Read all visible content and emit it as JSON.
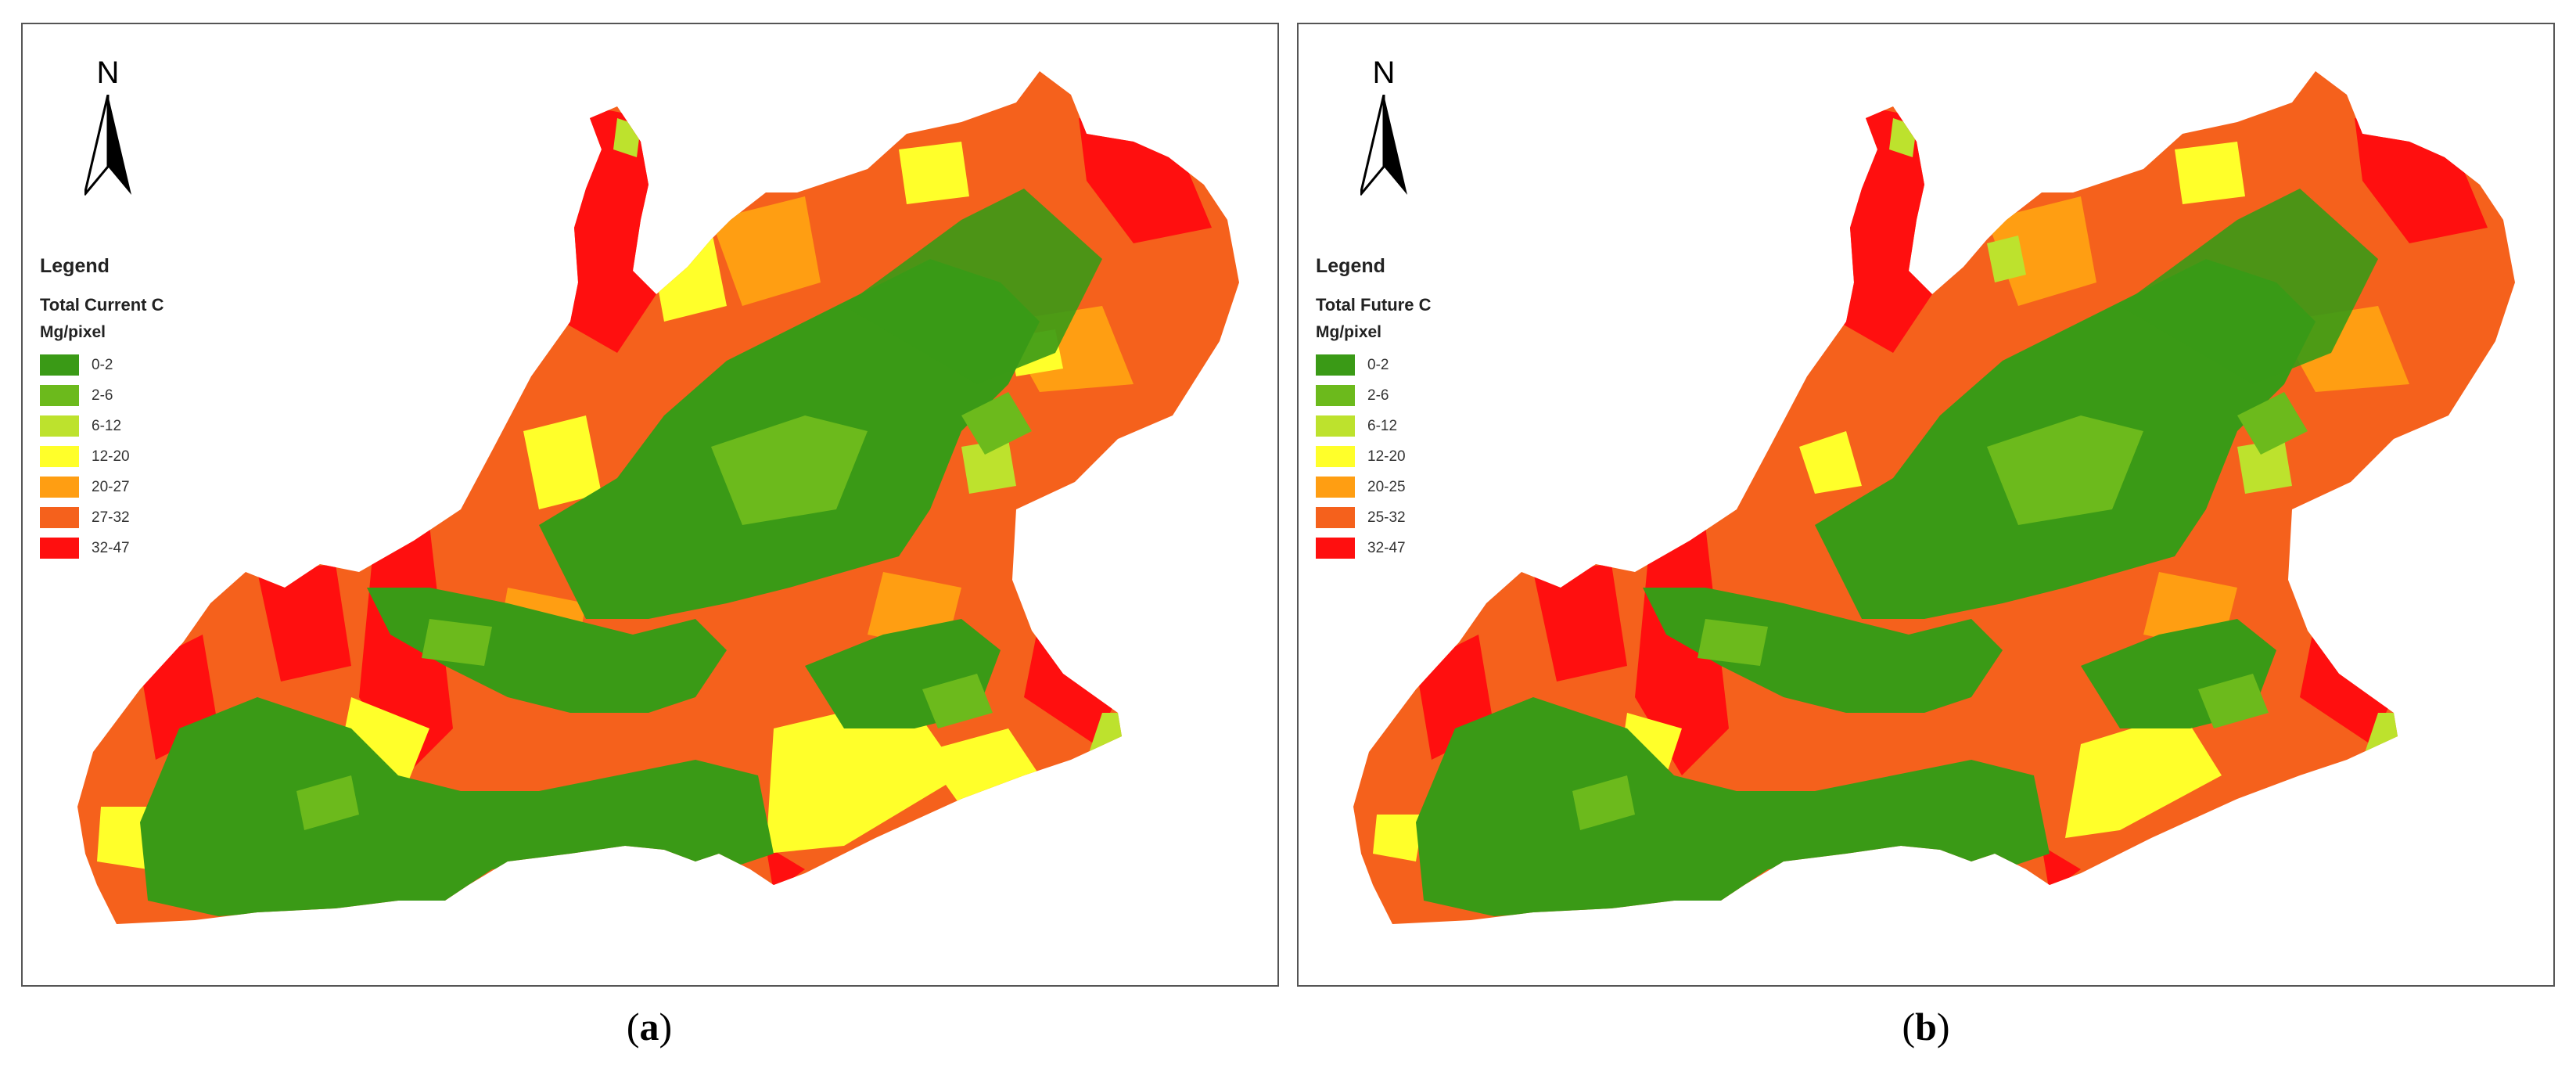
{
  "panels": [
    {
      "north_label": "N",
      "legend_heading": "Legend",
      "layer_name": "Total Current C",
      "unit": "Mg/pixel",
      "classes": [
        {
          "label": "0-2",
          "color": "#3a9a16"
        },
        {
          "label": "2-6",
          "color": "#6cba1c"
        },
        {
          "label": "6-12",
          "color": "#bde22d"
        },
        {
          "label": "12-20",
          "color": "#ffff2a"
        },
        {
          "label": "20-27",
          "color": "#ff9e12"
        },
        {
          "label": "27-32",
          "color": "#f5611c"
        },
        {
          "label": "32-47",
          "color": "#ff0f0f"
        }
      ],
      "caption_letter": "a"
    },
    {
      "north_label": "N",
      "legend_heading": "Legend",
      "layer_name": "Total Future C",
      "unit": "Mg/pixel",
      "classes": [
        {
          "label": "0-2",
          "color": "#3a9a16"
        },
        {
          "label": "2-6",
          "color": "#6cba1c"
        },
        {
          "label": "6-12",
          "color": "#bde22d"
        },
        {
          "label": "12-20",
          "color": "#ffff2a"
        },
        {
          "label": "20-25",
          "color": "#ff9e12"
        },
        {
          "label": "25-32",
          "color": "#f5611c"
        },
        {
          "label": "32-47",
          "color": "#ff0f0f"
        }
      ],
      "caption_letter": "b"
    }
  ]
}
